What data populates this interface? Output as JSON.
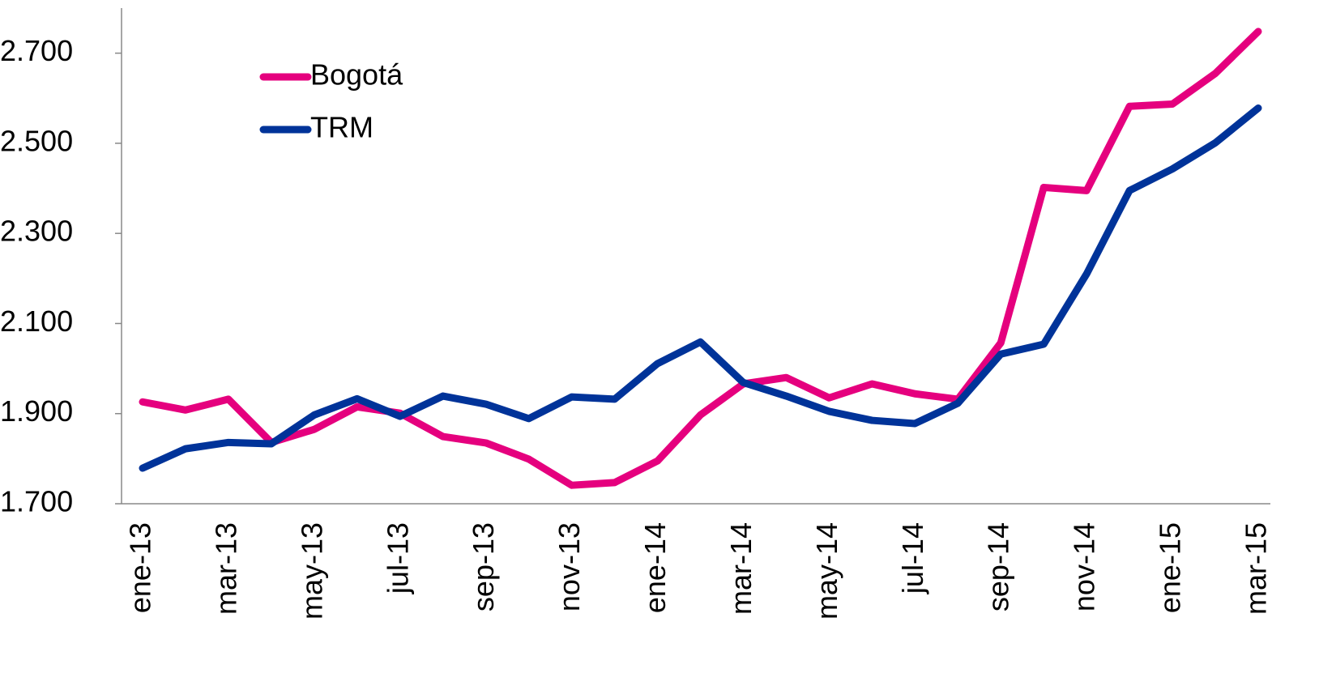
{
  "chart_data": {
    "type": "line",
    "categories": [
      "ene-13",
      null,
      "mar-13",
      null,
      "may-13",
      null,
      "jul-13",
      null,
      "sep-13",
      null,
      "nov-13",
      null,
      "ene-14",
      null,
      "mar-14",
      null,
      "may-14",
      null,
      "jul-14",
      null,
      "sep-14",
      null,
      "nov-14",
      null,
      "ene-15",
      null,
      "mar-15"
    ],
    "series": [
      {
        "name": "Bogotá",
        "color": "#e5007e",
        "values": [
          1926,
          1908,
          1932,
          1836,
          1865,
          1915,
          1901,
          1849,
          1835,
          1799,
          1741,
          1747,
          1795,
          1897,
          1966,
          1980,
          1935,
          1966,
          1944,
          1932,
          2057,
          2402,
          2395,
          2582,
          2587,
          2655,
          2748
        ]
      },
      {
        "name": "TRM",
        "color": "#003399",
        "values": [
          1779,
          1822,
          1836,
          1833,
          1897,
          1933,
          1894,
          1939,
          1921,
          1889,
          1937,
          1932,
          2011,
          2059,
          1969,
          1939,
          1905,
          1885,
          1878,
          1923,
          2032,
          2054,
          2210,
          2395,
          2443,
          2501,
          2578
        ]
      }
    ],
    "ylim": [
      1700,
      2800
    ],
    "yticks": [
      {
        "value": 1700,
        "label": "1.700"
      },
      {
        "value": 1900,
        "label": "1.900"
      },
      {
        "value": 2100,
        "label": "2.100"
      },
      {
        "value": 2300,
        "label": "2.300"
      },
      {
        "value": 2500,
        "label": "2.500"
      },
      {
        "value": 2700,
        "label": "2.700"
      }
    ],
    "legend": "upper left"
  }
}
